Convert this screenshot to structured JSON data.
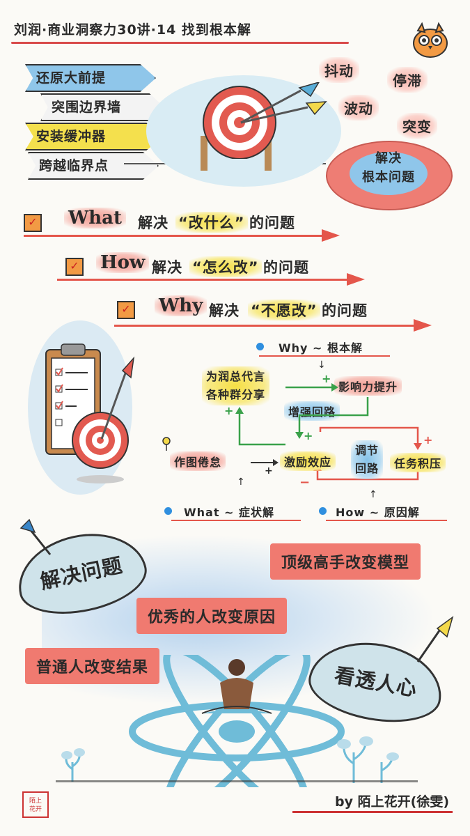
{
  "title": "刘润·商业洞察力30讲·14 找到根本解",
  "banners": [
    "还原大前提",
    "突围边界墙",
    "安装缓冲器",
    "跨越临界点"
  ],
  "symptoms": {
    "jitter": "抖动",
    "stall": "停滞",
    "wave": "波动",
    "jump": "突变"
  },
  "root_problem": "解决\n根本问题",
  "rows": [
    {
      "key": "What",
      "text_pre": "解决",
      "quote": "“改什么”",
      "text_post": "的问题"
    },
    {
      "key": "How",
      "text_pre": "解决",
      "quote": "“怎么改”",
      "text_post": "的问题"
    },
    {
      "key": "Why",
      "text_pre": "解决",
      "quote": "“不愿改”",
      "text_post": "的问题"
    }
  ],
  "diagram": {
    "why_label": "Why ~ 根本解",
    "share": "为润总代言\n各种群分享",
    "influence": "影响力提升",
    "reinforce": "增强回路",
    "plus": "+",
    "minus": "−",
    "infographic": "作图倦怠",
    "incentive": "激励效应",
    "balance": "调节\n回路",
    "pressure": "任务积压",
    "what_label": "What ~ 症状解",
    "how_label": "How ~ 原因解"
  },
  "bottom": {
    "solve": "解决问题",
    "top": "顶级高手改变模型",
    "good": "优秀的人改变原因",
    "normal": "普通人改变结果",
    "seeing": "看透人心"
  },
  "signature": "by 陌上花开(徐雯)",
  "seal_text": "陌上\n花开",
  "colors": {
    "red": "#e4564b",
    "yellow": "#f6df45",
    "blue": "#86c2e8"
  }
}
